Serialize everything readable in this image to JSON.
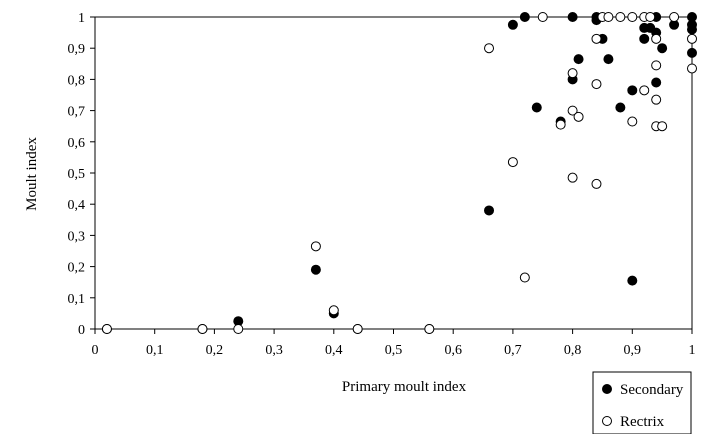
{
  "chart_data": {
    "type": "scatter",
    "xlabel": "Primary moult index",
    "ylabel": "Moult index",
    "xlim": [
      0,
      1
    ],
    "ylim": [
      0,
      1
    ],
    "x_ticks": [
      "0",
      "0,1",
      "0,2",
      "0,3",
      "0,4",
      "0,5",
      "0,6",
      "0,7",
      "0,8",
      "0,9",
      "1"
    ],
    "y_ticks": [
      "0",
      "0,1",
      "0,2",
      "0,3",
      "0,4",
      "0,5",
      "0,6",
      "0,7",
      "0,8",
      "0,9",
      "1"
    ],
    "grid": false,
    "legend_placement": "bottom-right, below plot",
    "series": [
      {
        "name": "Secondary",
        "marker": "filled-circle",
        "color": "#000000",
        "points": [
          [
            0.02,
            0.0
          ],
          [
            0.18,
            0.0
          ],
          [
            0.24,
            0.025
          ],
          [
            0.37,
            0.19
          ],
          [
            0.4,
            0.05
          ],
          [
            0.44,
            0.0
          ],
          [
            0.56,
            0.0
          ],
          [
            0.66,
            0.38
          ],
          [
            0.7,
            0.975
          ],
          [
            0.72,
            1.0
          ],
          [
            0.74,
            0.71
          ],
          [
            0.78,
            0.665
          ],
          [
            0.8,
            1.0
          ],
          [
            0.8,
            0.8
          ],
          [
            0.81,
            0.865
          ],
          [
            0.84,
            0.99
          ],
          [
            0.84,
            1.0
          ],
          [
            0.85,
            0.93
          ],
          [
            0.86,
            0.865
          ],
          [
            0.88,
            0.71
          ],
          [
            0.9,
            0.765
          ],
          [
            0.9,
            0.155
          ],
          [
            0.92,
            0.965
          ],
          [
            0.92,
            0.93
          ],
          [
            0.93,
            0.965
          ],
          [
            0.94,
            1.0
          ],
          [
            0.94,
            0.95
          ],
          [
            0.94,
            0.79
          ],
          [
            0.95,
            0.9
          ],
          [
            0.97,
            0.975
          ],
          [
            1.0,
            1.0
          ],
          [
            1.0,
            0.975
          ],
          [
            1.0,
            0.96
          ],
          [
            1.0,
            0.885
          ]
        ]
      },
      {
        "name": "Rectrix",
        "marker": "open-circle",
        "color": "#000000",
        "points": [
          [
            0.02,
            0.0
          ],
          [
            0.18,
            0.0
          ],
          [
            0.24,
            0.0
          ],
          [
            0.37,
            0.265
          ],
          [
            0.4,
            0.06
          ],
          [
            0.44,
            0.0
          ],
          [
            0.56,
            0.0
          ],
          [
            0.66,
            0.9
          ],
          [
            0.7,
            0.535
          ],
          [
            0.72,
            0.165
          ],
          [
            0.75,
            1.0
          ],
          [
            0.78,
            0.655
          ],
          [
            0.8,
            0.82
          ],
          [
            0.8,
            0.7
          ],
          [
            0.8,
            0.485
          ],
          [
            0.81,
            0.68
          ],
          [
            0.84,
            0.93
          ],
          [
            0.84,
            0.785
          ],
          [
            0.84,
            0.465
          ],
          [
            0.85,
            1.0
          ],
          [
            0.86,
            1.0
          ],
          [
            0.88,
            1.0
          ],
          [
            0.9,
            1.0
          ],
          [
            0.9,
            0.665
          ],
          [
            0.92,
            1.0
          ],
          [
            0.92,
            0.765
          ],
          [
            0.93,
            1.0
          ],
          [
            0.94,
            0.93
          ],
          [
            0.94,
            0.845
          ],
          [
            0.94,
            0.735
          ],
          [
            0.94,
            0.65
          ],
          [
            0.95,
            0.65
          ],
          [
            0.97,
            1.0
          ],
          [
            1.0,
            0.93
          ],
          [
            1.0,
            0.835
          ]
        ]
      }
    ]
  }
}
